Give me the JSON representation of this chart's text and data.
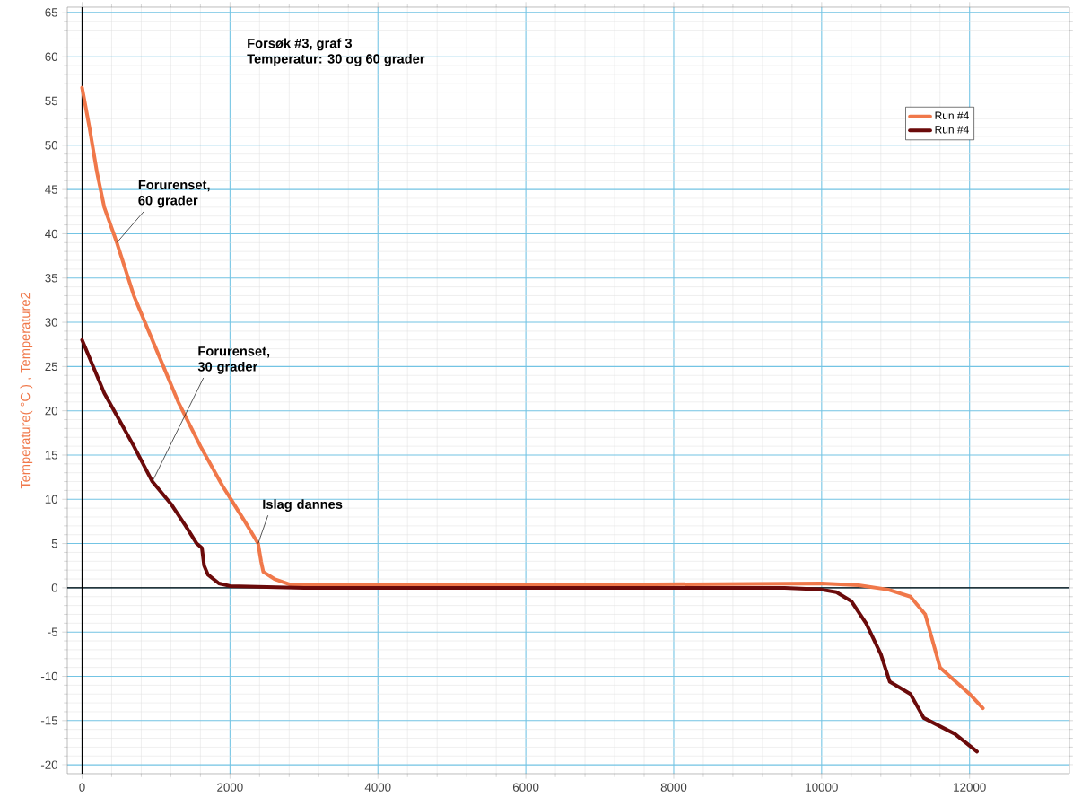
{
  "chart_data": {
    "type": "line",
    "title": "Forsøk #3, graf 3",
    "subtitle": "Temperatur: 30 og 60 grader",
    "ylabel": "Temperature( °C ) , Temperature2",
    "annotations": [
      {
        "text": "Forurenset, 60 grader",
        "x": 470,
        "y": 39
      },
      {
        "text": "Forurenset, 30 grader",
        "x": 950,
        "y": 12
      },
      {
        "text": "Islag dannes",
        "x": 2380,
        "y": 5
      }
    ],
    "xlim": [
      -200,
      13350
    ],
    "ylim": [
      -21,
      65.6
    ],
    "xticks": [
      0,
      2000,
      4000,
      6000,
      8000,
      10000,
      12000
    ],
    "yticks": [
      -20,
      -15,
      -10,
      -5,
      0,
      5,
      10,
      15,
      20,
      25,
      30,
      35,
      40,
      45,
      50,
      55,
      60,
      65
    ],
    "grid": true,
    "legend": "top right",
    "line_style": "solid",
    "series": [
      {
        "name": "Run #4",
        "color": "#f0784a",
        "x": [
          0,
          100,
          200,
          300,
          470,
          700,
          1000,
          1300,
          1600,
          1900,
          2200,
          2380,
          2420,
          2450,
          2600,
          2800,
          3000,
          6000,
          10000,
          10500,
          10900,
          11200,
          11400,
          11500,
          11600,
          11800,
          12000,
          12180
        ],
        "values": [
          56.5,
          52,
          47,
          43,
          39,
          33,
          27,
          21,
          16,
          11.5,
          7.5,
          5,
          3,
          1.8,
          1,
          0.4,
          0.3,
          0.3,
          0.5,
          0.3,
          -0.2,
          -1,
          -3,
          -6,
          -9,
          -10.5,
          -12,
          -13.6
        ]
      },
      {
        "name": "Run #4",
        "color": "#6b0a0a",
        "x": [
          0,
          100,
          300,
          500,
          700,
          950,
          1200,
          1400,
          1550,
          1620,
          1650,
          1700,
          1850,
          2000,
          3000,
          9500,
          10000,
          10200,
          10400,
          10600,
          10800,
          10920,
          11200,
          11380,
          11800,
          12100
        ],
        "values": [
          28,
          26,
          22,
          19,
          16,
          12,
          9.5,
          7,
          5,
          4.5,
          2.5,
          1.5,
          0.5,
          0.2,
          0,
          0,
          -0.2,
          -0.5,
          -1.5,
          -4,
          -7.5,
          -10.6,
          -12,
          -14.7,
          -16.5,
          -18.5
        ]
      }
    ]
  }
}
